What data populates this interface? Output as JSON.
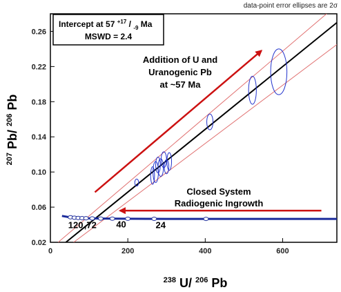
{
  "chart_data": {
    "type": "scatter",
    "note": "data-point error ellipses are 2σ",
    "xlabel": {
      "main": "U/",
      "sup1": "238",
      "sup2": "206",
      "tail": "Pb"
    },
    "ylabel": {
      "sup1": "207",
      "mid": "Pb/",
      "sup2": "206",
      "tail": "Pb"
    },
    "xlim": [
      0,
      740
    ],
    "ylim": [
      0.02,
      0.28
    ],
    "xticks": [
      0,
      200,
      400,
      600
    ],
    "yticks": [
      0.02,
      0.06,
      0.1,
      0.14,
      0.18,
      0.22,
      0.26
    ],
    "ytick_labels": [
      "0.02",
      "0.06",
      "0.10",
      "0.14",
      "0.18",
      "0.22",
      "0.26"
    ],
    "intercept_box": {
      "line1_pre": "Intercept at 57",
      "sup": "+17",
      "sep": "/",
      "sub": "-9",
      "line1_post": " Ma",
      "line2": "MSWD = 2.4"
    },
    "regression_line": {
      "p1": [
        40,
        0.02
      ],
      "p2": [
        740,
        0.27
      ]
    },
    "envelope_upper": {
      "p1": [
        20,
        0.02
      ],
      "p2": [
        740,
        0.29
      ]
    },
    "envelope_lower": {
      "p1": [
        60,
        0.02
      ],
      "p2": [
        740,
        0.245
      ]
    },
    "ellipses": [
      {
        "x": 590,
        "y": 0.214,
        "rx": 21,
        "ry": 0.026
      },
      {
        "x": 522,
        "y": 0.193,
        "rx": 10,
        "ry": 0.016
      },
      {
        "x": 412,
        "y": 0.157,
        "rx": 8,
        "ry": 0.009
      },
      {
        "x": 307,
        "y": 0.112,
        "rx": 6,
        "ry": 0.01
      },
      {
        "x": 300,
        "y": 0.106,
        "rx": 6,
        "ry": 0.008
      },
      {
        "x": 293,
        "y": 0.114,
        "rx": 7,
        "ry": 0.009
      },
      {
        "x": 285,
        "y": 0.105,
        "rx": 7,
        "ry": 0.01
      },
      {
        "x": 278,
        "y": 0.108,
        "rx": 6,
        "ry": 0.009
      },
      {
        "x": 272,
        "y": 0.1,
        "rx": 7,
        "ry": 0.012
      },
      {
        "x": 264,
        "y": 0.096,
        "rx": 5,
        "ry": 0.01
      },
      {
        "x": 223,
        "y": 0.088,
        "rx": 5,
        "ry": 0.004
      }
    ],
    "concordia": {
      "x": [
        30,
        50,
        70,
        90,
        110,
        140,
        170,
        200,
        250,
        300,
        350,
        400,
        450,
        500,
        550,
        600,
        650,
        700,
        740
      ],
      "y": [
        0.05,
        0.0485,
        0.0478,
        0.0474,
        0.0472,
        0.047,
        0.0469,
        0.0468,
        0.0467,
        0.0466,
        0.0466,
        0.0466,
        0.0466,
        0.0466,
        0.0466,
        0.0466,
        0.0466,
        0.0466,
        0.0466
      ]
    },
    "concordia_markers": [
      {
        "x": 52,
        "y": 0.0485
      },
      {
        "x": 62,
        "y": 0.048
      },
      {
        "x": 72,
        "y": 0.0477
      },
      {
        "x": 82,
        "y": 0.0475
      },
      {
        "x": 92,
        "y": 0.0474
      },
      {
        "x": 108,
        "y": 0.0472
      },
      {
        "x": 130,
        "y": 0.047
      },
      {
        "x": 160,
        "y": 0.0469
      },
      {
        "x": 200,
        "y": 0.0468
      },
      {
        "x": 268,
        "y": 0.0467
      },
      {
        "x": 402,
        "y": 0.0466
      }
    ],
    "age_labels": [
      {
        "text": "120",
        "x": 46,
        "y": 0.036
      },
      {
        "text": ",72",
        "x": 87,
        "y": 0.036
      },
      {
        "text": "40",
        "x": 170,
        "y": 0.037
      },
      {
        "text": "24",
        "x": 272,
        "y": 0.036
      }
    ],
    "annotations": {
      "addition": [
        "Addition of U and",
        "Uranogenic Pb",
        "at ~57 Ma"
      ],
      "closed": [
        "Closed System",
        "Radiogenic Ingrowth"
      ]
    },
    "arrows": {
      "addition": {
        "from": [
          115,
          0.077
        ],
        "to": [
          545,
          0.238
        ]
      },
      "closed": {
        "from": [
          700,
          0.056
        ],
        "to": [
          180,
          0.056
        ]
      }
    },
    "colors": {
      "regression": "#000000",
      "envelope": "#e07070",
      "ellipse": "#2233cc",
      "concordia": "#1a2a9a",
      "arrow": "#cc1111"
    }
  }
}
